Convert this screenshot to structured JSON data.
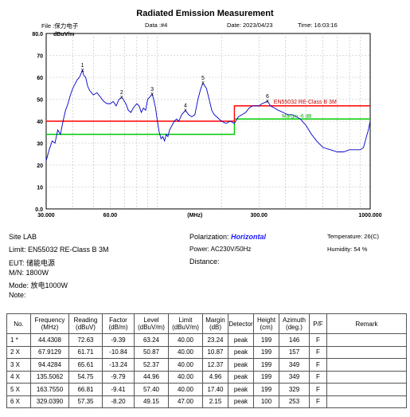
{
  "header": {
    "title": "Radiated Emission Measurement",
    "file": "File :保力电子",
    "data": "Data :#4",
    "date": "Date: 2023/04/23",
    "time": "Time: 16:03:16"
  },
  "chart_data": {
    "type": "line",
    "title": "Radiated Emission Measurement",
    "ylabel": "dBuV/m",
    "xlabel": "(MHz)",
    "x_scale": "log",
    "xlim": [
      30,
      1000
    ],
    "ylim": [
      0,
      80
    ],
    "y_ticks": [
      "0.0",
      "10",
      "20",
      "30",
      "40",
      "50",
      "60",
      "70",
      "80.0"
    ],
    "x_ticks": [
      "30.000",
      "60.00",
      "(MHz)",
      "300.00",
      "1000.000"
    ],
    "x_tick_values": [
      30,
      60,
      150,
      300,
      1000
    ],
    "grid": true,
    "limit_line": {
      "label": "EN55032 RE-Class B 3M",
      "color": "#ff0000",
      "segments": [
        [
          30,
          230,
          40
        ],
        [
          230,
          1000,
          47
        ]
      ]
    },
    "margin_line": {
      "label": "Margin -6 dB",
      "color": "#00cc00",
      "segments": [
        [
          30,
          230,
          34
        ],
        [
          230,
          1000,
          41
        ]
      ]
    },
    "trace": {
      "color": "#0000cc",
      "points": [
        [
          30,
          22
        ],
        [
          31,
          27
        ],
        [
          32,
          31
        ],
        [
          33,
          30
        ],
        [
          34,
          36
        ],
        [
          35,
          34
        ],
        [
          36,
          40
        ],
        [
          37,
          45
        ],
        [
          38,
          48
        ],
        [
          39,
          52
        ],
        [
          40,
          55
        ],
        [
          41,
          57
        ],
        [
          42,
          59
        ],
        [
          43,
          60
        ],
        [
          44.43,
          63.24
        ],
        [
          45,
          61
        ],
        [
          46,
          60
        ],
        [
          47,
          56
        ],
        [
          48,
          54
        ],
        [
          50,
          52
        ],
        [
          52,
          53
        ],
        [
          54,
          51
        ],
        [
          56,
          49
        ],
        [
          58,
          48
        ],
        [
          60,
          48
        ],
        [
          62,
          49
        ],
        [
          64,
          47
        ],
        [
          66,
          50
        ],
        [
          67.9,
          50.87
        ],
        [
          69,
          50
        ],
        [
          71,
          48
        ],
        [
          73,
          45
        ],
        [
          75,
          44
        ],
        [
          77,
          46
        ],
        [
          80,
          48
        ],
        [
          82,
          47
        ],
        [
          84,
          44
        ],
        [
          86,
          46
        ],
        [
          88,
          45
        ],
        [
          90,
          50
        ],
        [
          92,
          51
        ],
        [
          94.43,
          52.37
        ],
        [
          96,
          50
        ],
        [
          98,
          46
        ],
        [
          100,
          40
        ],
        [
          102,
          35
        ],
        [
          104,
          32
        ],
        [
          106,
          33
        ],
        [
          108,
          31
        ],
        [
          110,
          34
        ],
        [
          112,
          33
        ],
        [
          114,
          36
        ],
        [
          117,
          38
        ],
        [
          120,
          40
        ],
        [
          123,
          41
        ],
        [
          126,
          40
        ],
        [
          130,
          43
        ],
        [
          135.5,
          44.96
        ],
        [
          140,
          43
        ],
        [
          145,
          42
        ],
        [
          150,
          43
        ],
        [
          155,
          50
        ],
        [
          160,
          55
        ],
        [
          163.76,
          57.4
        ],
        [
          167,
          56
        ],
        [
          170,
          55
        ],
        [
          175,
          50
        ],
        [
          180,
          45
        ],
        [
          185,
          43
        ],
        [
          190,
          42
        ],
        [
          200,
          40
        ],
        [
          210,
          39
        ],
        [
          220,
          40
        ],
        [
          230,
          39
        ],
        [
          240,
          42
        ],
        [
          250,
          43
        ],
        [
          260,
          44
        ],
        [
          270,
          46
        ],
        [
          280,
          47
        ],
        [
          290,
          47
        ],
        [
          300,
          47
        ],
        [
          310,
          48
        ],
        [
          320,
          48.5
        ],
        [
          329.04,
          49.15
        ],
        [
          340,
          47
        ],
        [
          355,
          46
        ],
        [
          370,
          45
        ],
        [
          390,
          44
        ],
        [
          410,
          43
        ],
        [
          430,
          43
        ],
        [
          450,
          42
        ],
        [
          470,
          41
        ],
        [
          500,
          38
        ],
        [
          530,
          34
        ],
        [
          560,
          31
        ],
        [
          600,
          28
        ],
        [
          650,
          27
        ],
        [
          700,
          26
        ],
        [
          750,
          26
        ],
        [
          800,
          27
        ],
        [
          850,
          27
        ],
        [
          900,
          27
        ],
        [
          930,
          28
        ],
        [
          960,
          33
        ],
        [
          980,
          36
        ],
        [
          1000,
          40
        ]
      ]
    },
    "markers": [
      {
        "label": "1",
        "x": 44.4308,
        "y": 63.24
      },
      {
        "label": "2",
        "x": 67.9129,
        "y": 50.87
      },
      {
        "label": "3",
        "x": 94.4284,
        "y": 52.37
      },
      {
        "label": "4",
        "x": 135.5062,
        "y": 44.96
      },
      {
        "label": "5",
        "x": 163.755,
        "y": 57.4
      },
      {
        "label": "6",
        "x": 329.039,
        "y": 49.15
      }
    ]
  },
  "info": {
    "site": "Site  LAB",
    "limit": "Limit:  EN55032 RE-Class B 3M",
    "eut": "EUT:  储能电源",
    "mn": "M/N:   1800W",
    "mode": "Mode:  放电1000W",
    "note": "Note:",
    "polarization_label": "Polarization:",
    "polarization_value": "Horizontal",
    "power": "Power:  AC230V/50Hz",
    "distance": "Distance:",
    "temperature": "Temperature:      26(C)",
    "humidity": "Humidity:    54 %"
  },
  "table": {
    "headers": [
      "No.",
      "Frequency\n(MHz)",
      "Reading\n(dBuV)",
      "Factor\n(dB/m)",
      "Level\n(dBuV/m)",
      "Limit\n(dBuV/m)",
      "Margin\n(dB)",
      "Detector",
      "Height\n(cm)",
      "Azimuth\n(deg.)",
      "P/F",
      "Remark"
    ],
    "rows": [
      [
        "1  *",
        "44.4308",
        "72.63",
        "-9.39",
        "63.24",
        "40.00",
        "23.24",
        "peak",
        "199",
        "146",
        "F",
        ""
      ],
      [
        "2  X",
        "67.9129",
        "61.71",
        "-10.84",
        "50.87",
        "40.00",
        "10.87",
        "peak",
        "199",
        "157",
        "F",
        ""
      ],
      [
        "3  X",
        "94.4284",
        "65.61",
        "-13.24",
        "52.37",
        "40.00",
        "12.37",
        "peak",
        "199",
        "349",
        "F",
        ""
      ],
      [
        "4  X",
        "135.5062",
        "54.75",
        "-9.79",
        "44.96",
        "40.00",
        "4.96",
        "peak",
        "199",
        "349",
        "F",
        ""
      ],
      [
        "5  X",
        "163.7550",
        "66.81",
        "-9.41",
        "57.40",
        "40.00",
        "17.40",
        "peak",
        "199",
        "329",
        "F",
        ""
      ],
      [
        "6  X",
        "329.0390",
        "57.35",
        "-8.20",
        "49.15",
        "47.00",
        "2.15",
        "peak",
        "100",
        "253",
        "F",
        ""
      ]
    ]
  }
}
